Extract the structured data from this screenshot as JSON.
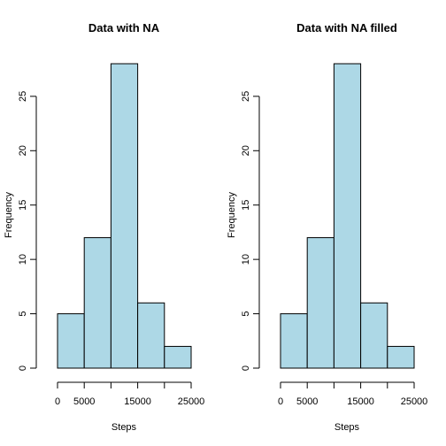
{
  "chart_data": [
    {
      "type": "bar",
      "title": "Data with NA",
      "xlabel": "Steps",
      "ylabel": "Frequency",
      "bins": [
        [
          0,
          5000
        ],
        [
          5000,
          10000
        ],
        [
          10000,
          15000
        ],
        [
          15000,
          20000
        ],
        [
          20000,
          25000
        ]
      ],
      "values": [
        5,
        12,
        28,
        6,
        2
      ],
      "xlim": [
        0,
        25000
      ],
      "ylim": [
        0,
        28
      ],
      "xticks": [
        0,
        5000,
        15000,
        25000
      ],
      "xtick_marks": [
        0,
        5000,
        10000,
        15000,
        20000,
        25000
      ],
      "yticks": [
        0,
        5,
        10,
        15,
        20,
        25
      ],
      "bar_color": "#add8e6",
      "grid": false
    },
    {
      "type": "bar",
      "title": "Data with NA filled",
      "xlabel": "Steps",
      "ylabel": "Frequency",
      "bins": [
        [
          0,
          5000
        ],
        [
          5000,
          10000
        ],
        [
          10000,
          15000
        ],
        [
          15000,
          20000
        ],
        [
          20000,
          25000
        ]
      ],
      "values": [
        5,
        12,
        28,
        6,
        2
      ],
      "xlim": [
        0,
        25000
      ],
      "ylim": [
        0,
        28
      ],
      "xticks": [
        0,
        5000,
        15000,
        25000
      ],
      "xtick_marks": [
        0,
        5000,
        10000,
        15000,
        20000,
        25000
      ],
      "yticks": [
        0,
        5,
        10,
        15,
        20,
        25
      ],
      "bar_color": "#add8e6",
      "grid": false
    }
  ]
}
